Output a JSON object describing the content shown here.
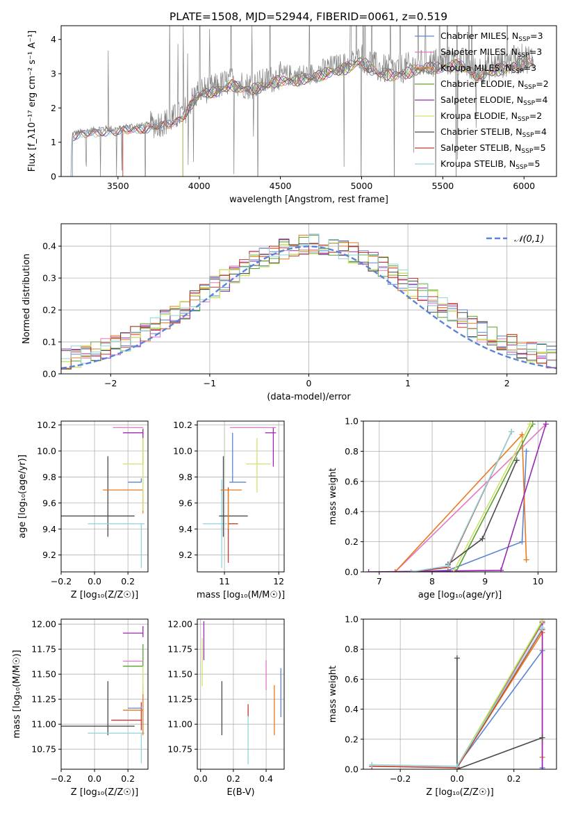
{
  "figure": {
    "title": "PLATE=1508, MJD=52944, FIBERID=0061, z=0.519"
  },
  "legend_models": [
    {
      "name": "Chabrier MILES",
      "n_ssp": 3,
      "color": "#5b84d6"
    },
    {
      "name": "Salpeter MILES",
      "n_ssp": 3,
      "color": "#e377c2"
    },
    {
      "name": "Kroupa MILES",
      "n_ssp": 3,
      "color": "#e8781e"
    },
    {
      "name": "Chabrier ELODIE",
      "n_ssp": 2,
      "color": "#5aa02c"
    },
    {
      "name": "Salpeter ELODIE",
      "n_ssp": 4,
      "color": "#9b27b0"
    },
    {
      "name": "Kroupa ELODIE",
      "n_ssp": 2,
      "color": "#cfe36a"
    },
    {
      "name": "Chabrier STELIB",
      "n_ssp": 4,
      "color": "#4a4a4a"
    },
    {
      "name": "Salpeter STELIB",
      "n_ssp": 5,
      "color": "#c0392b"
    },
    {
      "name": "Kroupa STELIB",
      "n_ssp": 5,
      "color": "#8fd3dc"
    }
  ],
  "legend_subscript": "SSP",
  "chart_data": [
    {
      "id": "spectrum",
      "type": "line",
      "xlabel": "wavelength [Angstrom, rest frame]",
      "ylabel": "Flux [f_λ10⁻¹⁷ erg cm⁻² s⁻¹ A⁻¹]",
      "xlim": [
        3150,
        6200
      ],
      "ylim": [
        0,
        4.4
      ],
      "xticks": [
        3500,
        4000,
        4500,
        5000,
        5500,
        6000
      ],
      "yticks": [
        0,
        1,
        2,
        3,
        4
      ],
      "data_color": "#808080",
      "series_anchors": {
        "x": [
          3200,
          3220,
          3400,
          3500,
          3550,
          3700,
          3800,
          3900,
          3950,
          4000,
          4100,
          4200,
          4300,
          4400,
          4500,
          4600,
          4700,
          4800,
          4900,
          5000,
          5100,
          5200,
          5300,
          5400,
          5500,
          5600,
          5700,
          5800,
          5900,
          6000,
          6060
        ],
        "y": [
          0.0,
          1.25,
          1.4,
          1.38,
          1.45,
          1.5,
          1.6,
          1.85,
          2.2,
          2.5,
          2.6,
          2.8,
          2.65,
          2.75,
          2.95,
          2.95,
          3.0,
          3.2,
          3.3,
          3.5,
          3.15,
          3.1,
          3.2,
          3.3,
          3.35,
          3.4,
          3.1,
          3.2,
          3.35,
          3.45,
          3.45
        ]
      },
      "grid": false,
      "legend": "upper right"
    },
    {
      "id": "residuals",
      "type": "step",
      "xlabel": "(data-model)/error",
      "ylabel": "Normed distribution",
      "xlim": [
        -2.5,
        2.5
      ],
      "ylim": [
        0,
        0.47
      ],
      "xticks": [
        -2,
        -1,
        0,
        1,
        2
      ],
      "yticks": [
        0.0,
        0.1,
        0.2,
        0.3,
        0.4
      ],
      "bins": 50,
      "grid": true,
      "reference_curve": {
        "label": "𝒩(0,1)",
        "color": "#5b84d6"
      },
      "legend": "upper right"
    },
    {
      "id": "age_vs_Z",
      "type": "errorbar",
      "xlabel": "Z [log₁₀(Z/Z☉)]",
      "ylabel": "age  [log₁₀(age/yr)]",
      "xlim": [
        -0.2,
        0.32
      ],
      "ylim": [
        9.07,
        10.23
      ],
      "xticks": [
        -0.2,
        0.0,
        0.2
      ],
      "yticks": [
        9.2,
        9.4,
        9.6,
        9.8,
        10.0,
        10.2
      ],
      "points": [
        {
          "x": 0.08,
          "xerr": [
            0.28,
            0.16
          ],
          "y": 9.5,
          "yerr": [
            0.16,
            0.46
          ],
          "color": "#4a4a4a"
        },
        {
          "x": 0.08,
          "xerr": [
            0.12,
            0.22
          ],
          "y": 9.44,
          "yerr": [
            0.0,
            0.0
          ],
          "color": "#8fd3dc"
        },
        {
          "x": 0.28,
          "xerr": [
            0.0,
            0.0
          ],
          "y": 9.44,
          "yerr": [
            0.34,
            0.0
          ],
          "color": "#8fd3dc"
        },
        {
          "x": 0.28,
          "xerr": [
            0.08,
            0.0
          ],
          "y": 9.76,
          "yerr": [
            0.0,
            0.03
          ],
          "color": "#5b84d6"
        },
        {
          "x": 0.29,
          "xerr": [
            0.24,
            0.0
          ],
          "y": 9.7,
          "yerr": [
            0.18,
            0.0
          ],
          "color": "#e8781e"
        },
        {
          "x": 0.29,
          "xerr": [
            0.0,
            0.0
          ],
          "y": 9.9,
          "yerr": [
            0.0,
            0.25
          ],
          "color": "#5aa02c"
        },
        {
          "x": 0.29,
          "xerr": [
            0.12,
            0.0
          ],
          "y": 9.9,
          "yerr": [
            0.36,
            0.28
          ],
          "color": "#cfe36a"
        },
        {
          "x": 0.29,
          "xerr": [
            0.18,
            0.0
          ],
          "y": 10.18,
          "yerr": [
            0.0,
            0.0
          ],
          "color": "#e377c2"
        },
        {
          "x": 0.29,
          "xerr": [
            0.12,
            0.0
          ],
          "y": 10.14,
          "yerr": [
            0.04,
            0.03
          ],
          "color": "#9b27b0"
        }
      ],
      "grid": true
    },
    {
      "id": "age_vs_mass",
      "type": "errorbar",
      "xlabel": "mass [log₁₀(M/M☉)]",
      "ylabel": "",
      "xlim": [
        10.5,
        12.1
      ],
      "ylim": [
        9.07,
        10.23
      ],
      "xticks": [
        11,
        12
      ],
      "yticks": [
        9.2,
        9.4,
        9.6,
        9.8,
        10.0,
        10.2
      ],
      "points": [
        {
          "x": 10.95,
          "xerr": [
            0.0,
            0.0
          ],
          "y": 9.44,
          "yerr": [
            0.34,
            0.34
          ],
          "color": "#8fd3dc"
        },
        {
          "x": 10.95,
          "xerr": [
            0.35,
            0.1
          ],
          "y": 9.44,
          "yerr": [
            0.0,
            0.0
          ],
          "color": "#8fd3dc"
        },
        {
          "x": 10.98,
          "xerr": [
            0.08,
            0.45
          ],
          "y": 9.5,
          "yerr": [
            0.16,
            0.46
          ],
          "color": "#4a4a4a"
        },
        {
          "x": 11.07,
          "xerr": [
            0.0,
            0.0
          ],
          "y": 9.44,
          "yerr": [
            0.3,
            0.28
          ],
          "color": "#c0392b"
        },
        {
          "x": 11.07,
          "xerr": [
            0.0,
            0.18
          ],
          "y": 9.44,
          "yerr": [
            0.0,
            0.0
          ],
          "color": "#c0392b"
        },
        {
          "x": 11.07,
          "xerr": [
            0.14,
            0.25
          ],
          "y": 9.7,
          "yerr": [
            0.3,
            0.0
          ],
          "color": "#e8781e"
        },
        {
          "x": 11.15,
          "xerr": [
            0.06,
            0.25
          ],
          "y": 9.76,
          "yerr": [
            0.0,
            0.38
          ],
          "color": "#5b84d6"
        },
        {
          "x": 11.6,
          "xerr": [
            0.2,
            0.25
          ],
          "y": 9.9,
          "yerr": [
            0.22,
            0.2
          ],
          "color": "#cfe36a"
        },
        {
          "x": 11.6,
          "xerr": [
            0.5,
            0.35
          ],
          "y": 10.18,
          "yerr": [
            0.0,
            0.0
          ],
          "color": "#e377c2"
        },
        {
          "x": 11.9,
          "xerr": [
            0.15,
            0.05
          ],
          "y": 10.14,
          "yerr": [
            0.26,
            0.04
          ],
          "color": "#9b27b0"
        }
      ],
      "grid": true
    },
    {
      "id": "massweight_vs_age",
      "type": "line",
      "xlabel": "age  [log₁₀(age/yr)]",
      "ylabel": "mass weight",
      "xlim": [
        6.7,
        10.35
      ],
      "ylim": [
        0,
        1
      ],
      "xticks": [
        7,
        8,
        9,
        10
      ],
      "yticks": [
        0.0,
        0.2,
        0.4,
        0.6,
        0.8,
        1.0
      ],
      "series": [
        {
          "model": "Chabrier MILES",
          "x": [
            7.3,
            8.3,
            9.7,
            9.78
          ],
          "y": [
            0.0,
            0.01,
            0.2,
            0.8
          ],
          "color": "#5b84d6"
        },
        {
          "model": "Salpeter MILES",
          "x": [
            7.3,
            10.15
          ],
          "y": [
            0.0,
            0.98
          ],
          "color": "#e377c2"
        },
        {
          "model": "Kroupa MILES",
          "x": [
            7.3,
            9.7,
            9.78
          ],
          "y": [
            0.0,
            0.91,
            0.08
          ],
          "color": "#e8781e"
        },
        {
          "model": "Chabrier ELODIE",
          "x": [
            8.45,
            9.9
          ],
          "y": [
            0.0,
            0.98
          ],
          "color": "#5aa02c"
        },
        {
          "model": "Salpeter ELODIE",
          "x": [
            6.8,
            9.3,
            10.15
          ],
          "y": [
            0.0,
            0.01,
            0.98
          ],
          "color": "#9b27b0"
        },
        {
          "model": "Kroupa ELODIE",
          "x": [
            8.4,
            9.85
          ],
          "y": [
            0.0,
            0.98
          ],
          "color": "#cfe36a"
        },
        {
          "model": "Chabrier STELIB",
          "x": [
            8.3,
            8.95,
            9.6
          ],
          "y": [
            0.05,
            0.22,
            0.74
          ],
          "color": "#4a4a4a"
        },
        {
          "model": "Salpeter STELIB",
          "x": [
            7.6,
            8.3,
            9.5
          ],
          "y": [
            0.0,
            0.03,
            0.93
          ],
          "color": "#c0392b"
        },
        {
          "model": "Kroupa STELIB",
          "x": [
            7.6,
            8.3,
            9.5
          ],
          "y": [
            0.0,
            0.04,
            0.93
          ],
          "color": "#8fd3dc"
        }
      ],
      "grid": true
    },
    {
      "id": "mass_vs_Z",
      "type": "errorbar",
      "xlabel": "Z [log₁₀(Z/Z☉)]",
      "ylabel": "mass [log₁₀(M/M☉)]",
      "xlim": [
        -0.2,
        0.32
      ],
      "ylim": [
        10.55,
        12.05
      ],
      "xticks": [
        -0.2,
        0.0,
        0.2
      ],
      "yticks": [
        10.75,
        11.0,
        11.25,
        11.5,
        11.75,
        12.0
      ],
      "points": [
        {
          "x": 0.08,
          "xerr": [
            0.28,
            0.16
          ],
          "y": 10.98,
          "yerr": [
            0.09,
            0.45
          ],
          "color": "#4a4a4a"
        },
        {
          "x": 0.08,
          "xerr": [
            0.12,
            0.22
          ],
          "y": 10.91,
          "yerr": [
            0.0,
            0.0
          ],
          "color": "#8fd3dc"
        },
        {
          "x": 0.28,
          "xerr": [
            0.0,
            0.0
          ],
          "y": 10.91,
          "yerr": [
            0.3,
            0.0
          ],
          "color": "#8fd3dc"
        },
        {
          "x": 0.28,
          "xerr": [
            0.18,
            0.0
          ],
          "y": 11.04,
          "yerr": [
            0.0,
            0.0
          ],
          "color": "#c0392b"
        },
        {
          "x": 0.28,
          "xerr": [
            0.0,
            0.0
          ],
          "y": 11.04,
          "yerr": [
            0.1,
            0.18
          ],
          "color": "#c0392b"
        },
        {
          "x": 0.29,
          "xerr": [
            0.12,
            0.0
          ],
          "y": 11.14,
          "yerr": [
            0.25,
            0.25
          ],
          "color": "#e8781e"
        },
        {
          "x": 0.28,
          "xerr": [
            0.08,
            0.0
          ],
          "y": 11.16,
          "yerr": [
            0.0,
            0.02
          ],
          "color": "#5b84d6"
        },
        {
          "x": 0.29,
          "xerr": [
            0.12,
            0.0
          ],
          "y": 11.58,
          "yerr": [
            0.0,
            0.22
          ],
          "color": "#5aa02c"
        },
        {
          "x": 0.29,
          "xerr": [
            0.0,
            0.0
          ],
          "y": 11.58,
          "yerr": [
            0.28,
            0.0
          ],
          "color": "#cfe36a"
        },
        {
          "x": 0.29,
          "xerr": [
            0.12,
            0.0
          ],
          "y": 11.63,
          "yerr": [
            0.0,
            0.0
          ],
          "color": "#e377c2"
        },
        {
          "x": 0.29,
          "xerr": [
            0.12,
            0.0
          ],
          "y": 11.91,
          "yerr": [
            0.04,
            0.07
          ],
          "color": "#9b27b0"
        }
      ],
      "grid": true
    },
    {
      "id": "mass_vs_ebv",
      "type": "errorbar",
      "xlabel": "E(B-V)",
      "ylabel": "",
      "xlim": [
        -0.02,
        0.51
      ],
      "ylim": [
        10.55,
        12.05
      ],
      "xticks": [
        0.0,
        0.2,
        0.4
      ],
      "yticks": [
        10.75,
        11.0,
        11.25,
        11.5,
        11.75,
        12.0
      ],
      "points": [
        {
          "x": 0.01,
          "xerr": [
            0.0,
            0.0
          ],
          "y": 11.58,
          "yerr": [
            0.2,
            0.28
          ],
          "color": "#cfe36a"
        },
        {
          "x": 0.02,
          "xerr": [
            0.0,
            0.0
          ],
          "y": 11.9,
          "yerr": [
            0.26,
            0.13
          ],
          "color": "#9b27b0"
        },
        {
          "x": 0.13,
          "xerr": [
            0.0,
            0.0
          ],
          "y": 11.16,
          "yerr": [
            0.27,
            0.27
          ],
          "color": "#4a4a4a"
        },
        {
          "x": 0.29,
          "xerr": [
            0.0,
            0.0
          ],
          "y": 10.95,
          "yerr": [
            0.35,
            0.2
          ],
          "color": "#8fd3dc"
        },
        {
          "x": 0.29,
          "xerr": [
            0.0,
            0.0
          ],
          "y": 11.2,
          "yerr": [
            0.12,
            0.0
          ],
          "color": "#c0392b"
        },
        {
          "x": 0.4,
          "xerr": [
            0.0,
            0.0
          ],
          "y": 11.5,
          "yerr": [
            0.16,
            0.14
          ],
          "color": "#e377c2"
        },
        {
          "x": 0.45,
          "xerr": [
            0.0,
            0.0
          ],
          "y": 11.14,
          "yerr": [
            0.25,
            0.25
          ],
          "color": "#e8781e"
        },
        {
          "x": 0.49,
          "xerr": [
            0.0,
            0.0
          ],
          "y": 11.3,
          "yerr": [
            0.23,
            0.26
          ],
          "color": "#5b84d6"
        }
      ],
      "grid": true
    },
    {
      "id": "massweight_vs_Z",
      "type": "line",
      "xlabel": "Z [log₁₀(Z/Z☉)]",
      "ylabel": "mass weight",
      "xlim": [
        -0.33,
        0.35
      ],
      "ylim": [
        0,
        1
      ],
      "xticks": [
        -0.2,
        0.0,
        0.2
      ],
      "yticks": [
        0.0,
        0.2,
        0.4,
        0.6,
        0.8,
        1.0
      ],
      "series": [
        {
          "model": "Chabrier MILES",
          "x": [
            0.0,
            0.3,
            0.3
          ],
          "y": [
            0.02,
            0.79,
            0.01
          ],
          "color": "#5b84d6"
        },
        {
          "model": "Salpeter MILES",
          "x": [
            0.0,
            0.3
          ],
          "y": [
            0.01,
            0.97
          ],
          "color": "#e377c2"
        },
        {
          "model": "Kroupa MILES",
          "x": [
            0.0,
            0.3,
            0.3
          ],
          "y": [
            0.01,
            0.91,
            0.08
          ],
          "color": "#e8781e"
        },
        {
          "model": "Chabrier ELODIE",
          "x": [
            0.0,
            0.3
          ],
          "y": [
            0.02,
            0.98
          ],
          "color": "#5aa02c"
        },
        {
          "model": "Salpeter ELODIE",
          "x": [
            0.3,
            0.3
          ],
          "y": [
            0.0,
            0.98
          ],
          "color": "#9b27b0"
        },
        {
          "model": "Kroupa ELODIE",
          "x": [
            0.0,
            0.3
          ],
          "y": [
            0.02,
            0.99
          ],
          "color": "#cfe36a"
        },
        {
          "model": "Chabrier STELIB",
          "x": [
            0.0,
            0.0,
            0.3
          ],
          "y": [
            0.74,
            0.0,
            0.21
          ],
          "color": "#4a4a4a"
        },
        {
          "model": "Salpeter STELIB",
          "x": [
            -0.3,
            0.0,
            0.3
          ],
          "y": [
            0.02,
            0.01,
            0.93
          ],
          "color": "#c0392b"
        },
        {
          "model": "Kroupa STELIB",
          "x": [
            -0.3,
            0.0,
            0.3
          ],
          "y": [
            0.03,
            0.02,
            0.94
          ],
          "color": "#8fd3dc"
        }
      ],
      "grid": true
    }
  ]
}
